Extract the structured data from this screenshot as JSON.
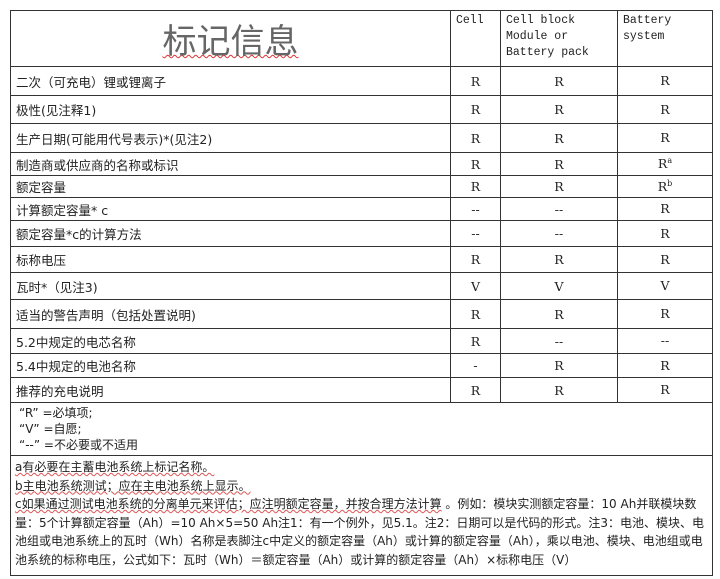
{
  "header": {
    "title": "标记信息",
    "col_cell": "Cell",
    "col_module": "Cell block Module or Battery pack",
    "col_system": "Battery system"
  },
  "rows": [
    {
      "label": "二次（可充电）锂或锂离子",
      "cell": "R",
      "module": "R",
      "system": "R",
      "sup": ""
    },
    {
      "label": "极性(见注释1)",
      "cell": "R",
      "module": "R",
      "system": "R",
      "sup": ""
    },
    {
      "label": "生产日期(可能用代号表示)*(见注2)",
      "cell": "R",
      "module": "R",
      "system": "R",
      "sup": ""
    },
    {
      "label": "制造商或供应商的名称或标识",
      "cell": "R",
      "module": "R",
      "system": "R",
      "sup": "a"
    },
    {
      "label": "额定容量",
      "cell": "R",
      "module": "R",
      "system": "R",
      "sup": "b"
    },
    {
      "label": "计算额定容量* c",
      "cell": "--",
      "module": "--",
      "system": "R",
      "sup": ""
    },
    {
      "label": "额定容量*c的计算方法",
      "cell": "--",
      "module": "--",
      "system": "R",
      "sup": ""
    },
    {
      "label": "标称电压",
      "cell": "R",
      "module": "R",
      "system": "R",
      "sup": ""
    },
    {
      "label": "瓦时*（见注3)",
      "cell": "V",
      "module": "V",
      "system": "V",
      "sup": ""
    },
    {
      "label": "适当的警告声明（包括处置说明)",
      "cell": "R",
      "module": "R",
      "system": "R",
      "sup": ""
    },
    {
      "label": "5.2中规定的电芯名称",
      "cell": "R",
      "module": "--",
      "system": "--",
      "sup": ""
    },
    {
      "label": "5.4中规定的电池名称",
      "cell": "-",
      "module": "R",
      "system": "R",
      "sup": ""
    },
    {
      "label": "推荐的充电说明",
      "cell": "R",
      "module": "R",
      "system": "R",
      "sup": ""
    }
  ],
  "legend": [
    "“R” =必填项;",
    "“V” =自愿;",
    "“--” =不必要或不适用"
  ],
  "notes": {
    "a": "a有必要在主蓄电池系统上标记名称。",
    "b": "b主电池系统测试；应在主电池系统上显示。",
    "c": "c如果通过测试电池系统的分离单元来评估；应注明额定容量，并按合理方法计算",
    "rest": " 。例如：模块实测额定容量：10 Ah并联模块数量：5个计算额定容量（Ah）=10 Ah×5=50 Ah注1：有一个例外，见5.1。注2：日期可以是代码的形式。注3：电池、模块、电池组或电池系统上的瓦时（Wh）名称是表脚注c中定义的额定容量（Ah）或计算的额定容量（Ah），乘以电池、模块、电池组或电池系统的标称电压，公式如下：瓦时（Wh）＝额定容量（Ah）或计算的额定容量（Ah）×标称电压（V）"
  }
}
